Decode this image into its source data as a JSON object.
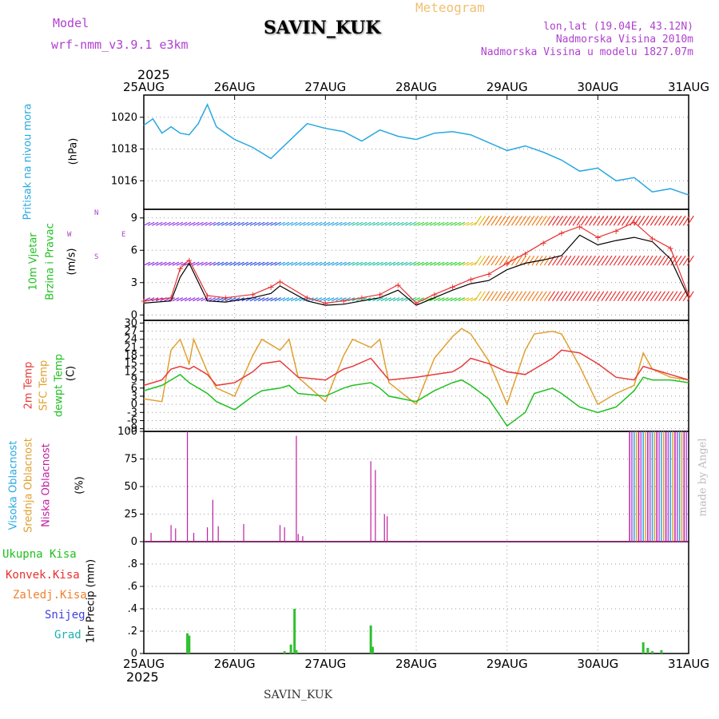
{
  "header": {
    "model_label": "Model",
    "model_name": "wrf-nmm_v3.9.1 e3km",
    "station": "SAVIN_KUK",
    "meteogram": "Meteogram",
    "lonlat": "lon,lat (19.04E, 43.12N)",
    "elevation": "Nadmorska Visina 2010m",
    "model_elevation": "Nadmorska Visina u modelu 1827.07m",
    "year_top": "2025",
    "year_bottom": "2025",
    "footer_station": "SAVIN_KUK",
    "watermark": "made by Angel"
  },
  "colors": {
    "pressure": "#29a8e0",
    "wind_black": "#000000",
    "gust": "#e83030",
    "t2m": "#e83a3a",
    "sfc": "#e0a030",
    "dewpt": "#20c020",
    "cloud_high": "#29a8e0",
    "cloud_mid": "#e0a030",
    "cloud_low": "#c020a0",
    "precip": "#30c030",
    "purple": "#b040d0"
  },
  "labels": {
    "pressure": {
      "title": "Pritisak na nivou mora",
      "unit": "(hPa)"
    },
    "wind": {
      "title1": "10m Vjetar",
      "title2": "Brzina i Pravac",
      "unit": "(m/s)",
      "compass_n": "N",
      "compass_s": "S",
      "compass_w": "W",
      "compass_e": "E"
    },
    "temp": {
      "t2m": "2m Temp",
      "sfc": "SFC Temp",
      "dew": "dewpt Temp",
      "unit": "(C)"
    },
    "cloud": {
      "high": "Visoka Oblacnost",
      "mid": "Srednja Oblacnost",
      "low": "Niska Oblacnost",
      "unit": "(%)"
    },
    "precip": {
      "total": "Ukupna Kisa",
      "conv": "Konvek.Kisa",
      "frozen": "Zaledj.Kisa",
      "snow": "Snijeg",
      "grad": "Grad",
      "unit": "1hr Precip (mm)"
    }
  },
  "chart_data": {
    "type": "line",
    "x_labels": [
      "25AUG",
      "26AUG",
      "27AUG",
      "28AUG",
      "29AUG",
      "30AUG",
      "31AUG"
    ],
    "x_range_days": [
      0,
      6
    ],
    "panels": {
      "pressure": {
        "ylim": [
          1014.2,
          1021.4
        ],
        "ticks": [
          1016,
          1018,
          1020
        ],
        "x": [
          0,
          0.1,
          0.2,
          0.3,
          0.4,
          0.5,
          0.6,
          0.7,
          0.8,
          0.9,
          1.0,
          1.2,
          1.4,
          1.6,
          1.8,
          2.0,
          2.2,
          2.4,
          2.6,
          2.8,
          3.0,
          3.2,
          3.4,
          3.6,
          3.8,
          4.0,
          4.2,
          4.4,
          4.6,
          4.8,
          5.0,
          5.2,
          5.4,
          5.6,
          5.8,
          6.0
        ],
        "y": [
          1019.5,
          1019.9,
          1019.0,
          1019.4,
          1019.0,
          1018.9,
          1019.6,
          1020.8,
          1019.4,
          1019.0,
          1018.6,
          1018.1,
          1017.4,
          1018.5,
          1019.6,
          1019.3,
          1019.1,
          1018.5,
          1019.2,
          1018.8,
          1018.6,
          1019.0,
          1019.1,
          1018.9,
          1018.4,
          1017.9,
          1018.2,
          1017.8,
          1017.3,
          1016.6,
          1016.8,
          1016.0,
          1016.2,
          1015.3,
          1015.5,
          1015.1
        ]
      },
      "wind": {
        "ylim": [
          -0.5,
          9.8
        ],
        "ticks": [
          0,
          3,
          6,
          9
        ],
        "x": [
          0,
          0.3,
          0.4,
          0.5,
          0.7,
          0.9,
          1.2,
          1.4,
          1.5,
          1.8,
          2.0,
          2.2,
          2.4,
          2.6,
          2.8,
          3.0,
          3.2,
          3.4,
          3.6,
          3.8,
          4.0,
          4.2,
          4.4,
          4.6,
          4.8,
          5.0,
          5.2,
          5.4,
          5.6,
          5.8,
          6.0
        ],
        "speed": [
          1.1,
          1.3,
          3.5,
          4.8,
          1.3,
          1.2,
          1.6,
          2.0,
          2.7,
          1.3,
          0.9,
          1.0,
          1.3,
          1.6,
          2.3,
          0.9,
          1.6,
          2.3,
          2.9,
          3.2,
          4.2,
          4.8,
          5.1,
          5.5,
          7.4,
          6.5,
          6.9,
          7.2,
          6.8,
          5.2,
          1.6
        ],
        "gust": [
          1.3,
          1.6,
          4.3,
          5.1,
          1.8,
          1.6,
          1.9,
          2.6,
          3.1,
          1.6,
          1.1,
          1.3,
          1.6,
          1.9,
          2.8,
          1.1,
          1.9,
          2.6,
          3.3,
          3.8,
          4.8,
          5.7,
          6.7,
          7.6,
          8.2,
          7.2,
          7.8,
          8.6,
          7.1,
          6.2,
          1.8
        ]
      },
      "temperature": {
        "ylim": [
          -10,
          31
        ],
        "ticks": [
          -9,
          -6,
          -3,
          0,
          3,
          6,
          9,
          12,
          15,
          18,
          21,
          24,
          27,
          30
        ],
        "x": [
          0,
          0.2,
          0.3,
          0.4,
          0.5,
          0.55,
          0.7,
          0.8,
          1.0,
          1.2,
          1.3,
          1.5,
          1.6,
          1.7,
          2.0,
          2.2,
          2.3,
          2.5,
          2.6,
          2.7,
          3.0,
          3.2,
          3.4,
          3.5,
          3.6,
          3.8,
          4.0,
          4.2,
          4.3,
          4.5,
          4.6,
          4.8,
          5.0,
          5.2,
          5.4,
          5.5,
          5.6,
          5.8,
          6.0
        ],
        "t2m": [
          7,
          9,
          13,
          14,
          13,
          14,
          11,
          7,
          8,
          12,
          15,
          16,
          13,
          10,
          9,
          13,
          14,
          17,
          13,
          9,
          10,
          11,
          12,
          14,
          17,
          15,
          12,
          11,
          13,
          17,
          20,
          19,
          15,
          10,
          9,
          14,
          13,
          11,
          9
        ],
        "sfc": [
          2,
          1,
          20,
          24,
          15,
          24,
          12,
          6,
          3,
          18,
          24,
          20,
          24,
          10,
          1,
          18,
          24,
          21,
          24,
          8,
          0,
          17,
          25,
          28,
          26,
          16,
          0,
          20,
          26,
          27,
          26,
          14,
          0,
          4,
          7,
          19,
          13,
          10,
          9
        ],
        "dewpt": [
          5,
          7,
          9,
          11,
          8,
          7,
          4,
          1,
          -2,
          3,
          5,
          6,
          7,
          4,
          3,
          6,
          7,
          8,
          6,
          3,
          1,
          5,
          8,
          9,
          7,
          2,
          -8,
          -3,
          4,
          6,
          4,
          -1,
          -3,
          -1,
          5,
          10,
          9,
          9,
          8
        ]
      },
      "cloud": {
        "ylim": [
          0,
          100
        ],
        "ticks": [
          0,
          25,
          50,
          75,
          100
        ],
        "low_bars_x": [
          0.08,
          0.3,
          0.35,
          0.48,
          0.55,
          0.7,
          0.76,
          0.82,
          1.1,
          1.5,
          1.55,
          1.68,
          1.7,
          1.75,
          2.5,
          2.55,
          2.65,
          2.68
        ],
        "low_bars_v": [
          8,
          15,
          12,
          100,
          8,
          13,
          38,
          14,
          16,
          15,
          13,
          96,
          7,
          5,
          73,
          65,
          25,
          23
        ]
      },
      "precip": {
        "ylim": [
          0,
          1
        ],
        "ticks": [
          0,
          0.2,
          0.4,
          0.6,
          0.8
        ],
        "x": [
          0.48,
          0.5,
          1.55,
          1.62,
          1.66,
          1.68,
          2.5,
          2.52,
          5.5,
          5.55,
          5.6,
          5.7
        ],
        "y": [
          0.18,
          0.16,
          0.02,
          0.08,
          0.4,
          0.03,
          0.25,
          0.06,
          0.1,
          0.05,
          0.02,
          0.03
        ]
      }
    }
  }
}
